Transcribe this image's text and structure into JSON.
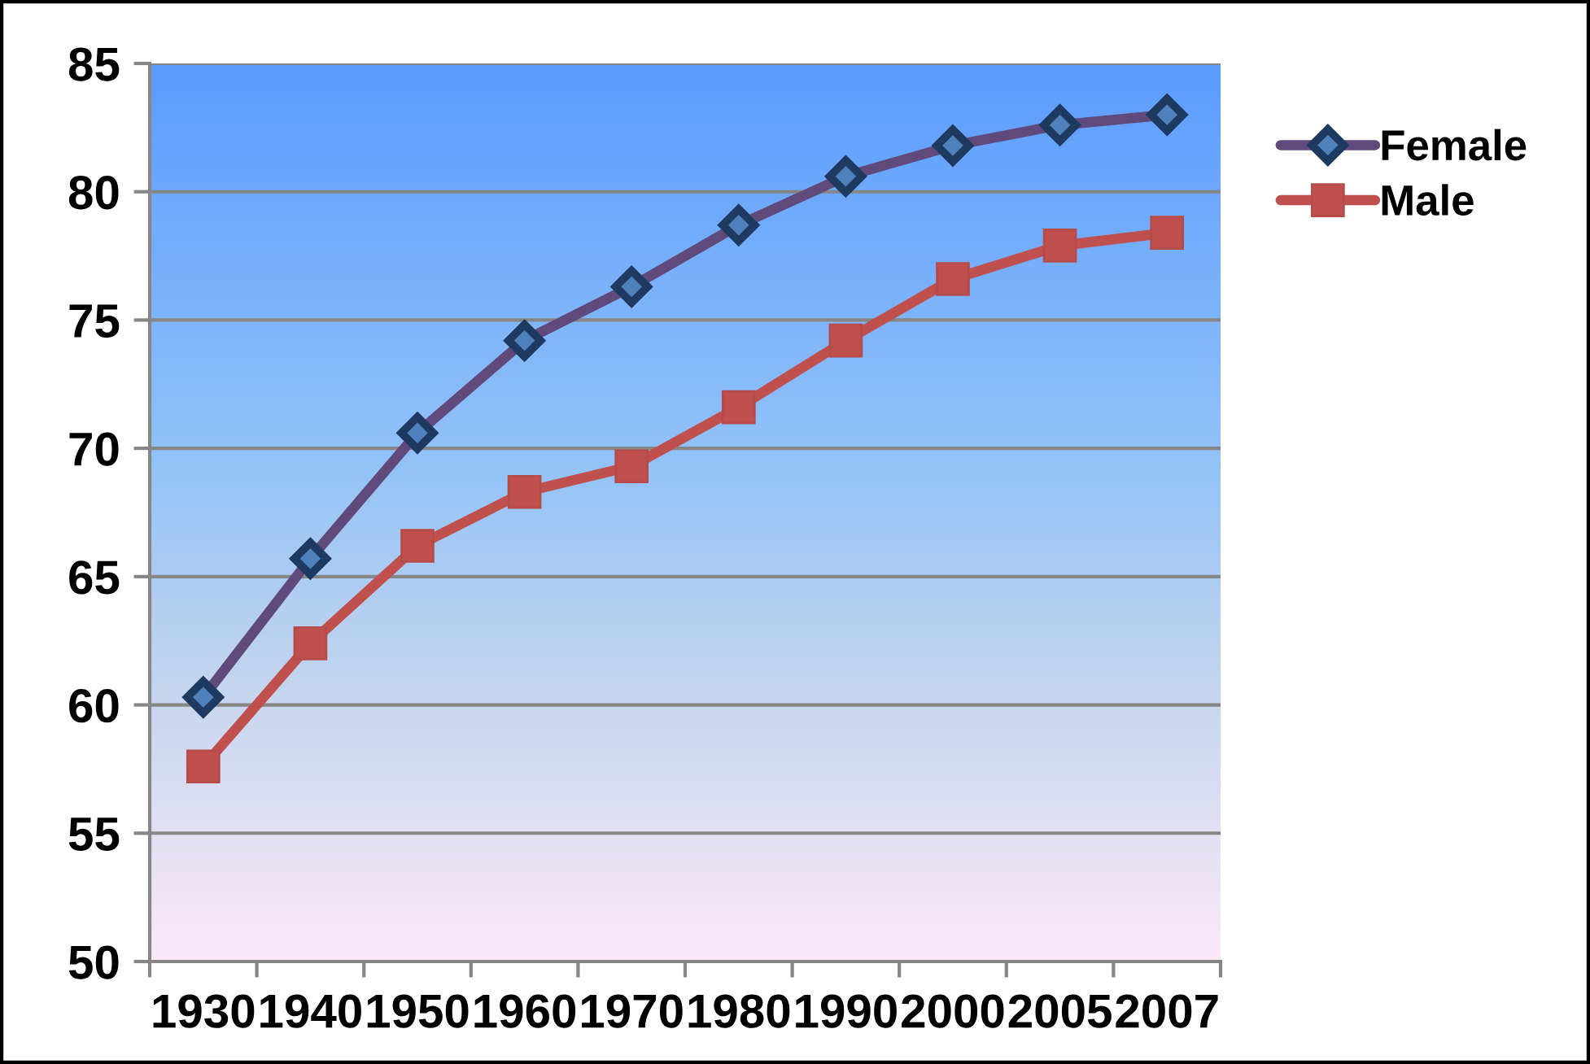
{
  "chart_data": {
    "type": "line",
    "categories": [
      "1930",
      "1940",
      "1950",
      "1960",
      "1970",
      "1980",
      "1990",
      "2000",
      "2005",
      "2007"
    ],
    "series": [
      {
        "name": "Female",
        "color": "#604a7b",
        "marker": "diamond",
        "values": [
          60.3,
          65.7,
          70.6,
          74.2,
          76.3,
          78.7,
          80.6,
          81.8,
          82.6,
          83.0
        ]
      },
      {
        "name": "Male",
        "color": "#c0504d",
        "marker": "square",
        "values": [
          57.6,
          62.4,
          66.2,
          68.3,
          69.3,
          71.6,
          74.2,
          76.6,
          77.9,
          78.4
        ]
      }
    ],
    "ylim": [
      50,
      85
    ],
    "yticks": [
      50,
      55,
      60,
      65,
      70,
      75,
      80,
      85
    ],
    "grid": "y",
    "legend": "top right",
    "line_style": "solid"
  }
}
